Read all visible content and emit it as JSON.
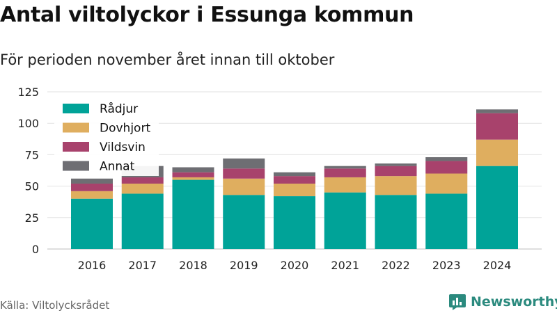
{
  "title": "Antal viltolyckor i Essunga kommun",
  "subtitle": "För perioden november året innan till oktober",
  "source": "Källa: Viltolycksrådet",
  "brand": {
    "name": "Newsworthy",
    "icon": "newsworthy-logo-icon",
    "color": "#2b8a7e"
  },
  "chart_data": {
    "type": "bar",
    "stacked": true,
    "categories": [
      "2016",
      "2017",
      "2018",
      "2019",
      "2020",
      "2021",
      "2022",
      "2023",
      "2024"
    ],
    "series": [
      {
        "name": "Rådjur",
        "color": "#00a398",
        "values": [
          40,
          44,
          55,
          43,
          42,
          45,
          43,
          44,
          66
        ]
      },
      {
        "name": "Dovhjort",
        "color": "#dfae5f",
        "values": [
          6,
          8,
          2,
          13,
          10,
          12,
          15,
          16,
          21
        ]
      },
      {
        "name": "Vildsvin",
        "color": "#a8426c",
        "values": [
          6,
          5,
          4,
          8,
          6,
          7,
          8,
          10,
          21
        ]
      },
      {
        "name": "Annat",
        "color": "#6e6e73",
        "values": [
          4,
          9,
          4,
          8,
          3,
          2,
          2,
          3,
          3
        ]
      }
    ],
    "yticks": [
      0,
      25,
      50,
      75,
      100,
      125
    ],
    "ylim": [
      0,
      125
    ],
    "grid": true,
    "legend": "top-left",
    "xlabel": "",
    "ylabel": ""
  }
}
